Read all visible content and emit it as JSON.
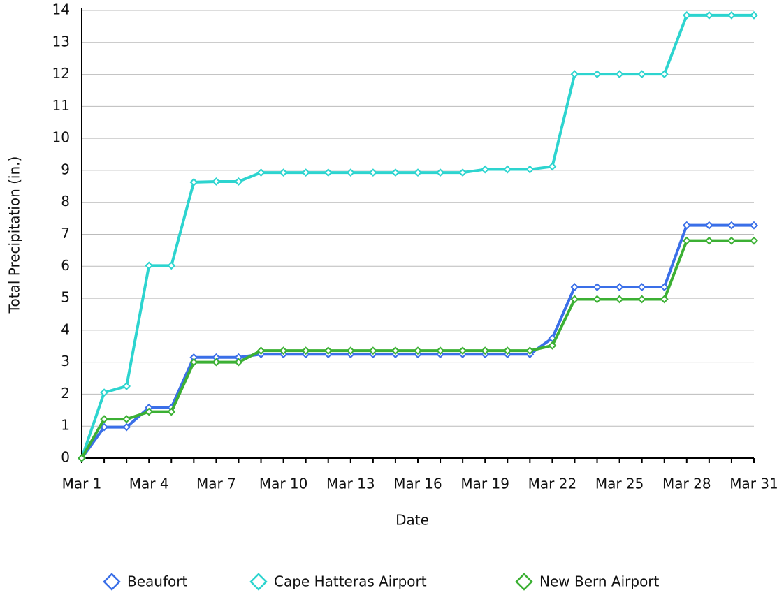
{
  "chart_data": {
    "type": "line",
    "x_label": "Date",
    "y_label": "Total Precipitation (in.)",
    "categories": [
      "Mar 1",
      null,
      null,
      "Mar 4",
      null,
      null,
      "Mar 7",
      null,
      null,
      "Mar 10",
      null,
      null,
      "Mar 13",
      null,
      null,
      "Mar 16",
      null,
      null,
      "Mar 19",
      null,
      null,
      "Mar 22",
      null,
      null,
      "Mar 25",
      null,
      null,
      "Mar 28",
      null,
      null,
      "Mar 31"
    ],
    "series": [
      {
        "name": "Beaufort",
        "color": "#3a6fe8",
        "values": [
          0,
          0.97,
          0.97,
          1.58,
          1.58,
          3.15,
          3.15,
          3.15,
          3.25,
          3.25,
          3.25,
          3.25,
          3.25,
          3.25,
          3.25,
          3.25,
          3.25,
          3.25,
          3.25,
          3.25,
          3.25,
          3.75,
          5.35,
          5.35,
          5.35,
          5.35,
          5.35,
          7.28,
          7.28,
          7.28,
          7.28
        ]
      },
      {
        "name": "Cape Hatteras Airport",
        "color": "#2dd4cf",
        "values": [
          0,
          2.05,
          2.25,
          6.02,
          6.02,
          8.63,
          8.65,
          8.65,
          8.93,
          8.93,
          8.93,
          8.93,
          8.93,
          8.93,
          8.93,
          8.93,
          8.93,
          8.93,
          9.03,
          9.03,
          9.03,
          9.12,
          12.01,
          12.01,
          12.01,
          12.01,
          12.01,
          13.85,
          13.85,
          13.85,
          13.85
        ]
      },
      {
        "name": "New Bern Airport",
        "color": "#3cb034",
        "values": [
          0,
          1.22,
          1.22,
          1.45,
          1.45,
          3.0,
          3.0,
          3.0,
          3.36,
          3.36,
          3.36,
          3.36,
          3.36,
          3.36,
          3.36,
          3.36,
          3.36,
          3.36,
          3.36,
          3.36,
          3.36,
          3.52,
          4.97,
          4.97,
          4.97,
          4.97,
          4.97,
          6.8,
          6.8,
          6.8,
          6.8
        ]
      }
    ],
    "ylim": [
      0,
      14
    ],
    "yticks": [
      0,
      1,
      2,
      3,
      4,
      5,
      6,
      7,
      8,
      9,
      10,
      11,
      12,
      13,
      14
    ],
    "grid": true,
    "legend": "bottom"
  }
}
